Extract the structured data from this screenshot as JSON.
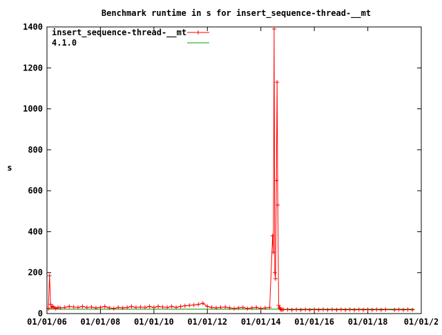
{
  "chart_data": {
    "type": "line",
    "title": "Benchmark runtime in s for insert_sequence-thread-__mt",
    "xlabel": "",
    "ylabel": "s",
    "xlim": [
      "2006-01-01",
      "2020-01-01"
    ],
    "ylim": [
      0,
      1400
    ],
    "x_ticks": [
      "01/01/06",
      "01/01/08",
      "01/01/10",
      "01/01/12",
      "01/01/14",
      "01/01/16",
      "01/01/18",
      "01/01/2"
    ],
    "y_ticks": [
      0,
      200,
      400,
      600,
      800,
      1000,
      1200,
      1400
    ],
    "grid": false,
    "legend_placement": "top-left",
    "colors": {
      "series": "#ff0000",
      "baseline": "#00a000"
    },
    "series": [
      {
        "name": "insert_sequence-thread-__mt",
        "style": "lines+crosses",
        "x": [
          "2006-01-20",
          "2006-02-05",
          "2006-02-20",
          "2006-03-05",
          "2006-03-20",
          "2006-04-05",
          "2006-05-01",
          "2006-06-01",
          "2006-07-01",
          "2006-09-01",
          "2006-11-01",
          "2007-01-01",
          "2007-03-01",
          "2007-05-01",
          "2007-07-01",
          "2007-09-01",
          "2007-11-01",
          "2008-01-01",
          "2008-03-01",
          "2008-05-01",
          "2008-07-01",
          "2008-09-01",
          "2008-11-01",
          "2009-01-01",
          "2009-03-01",
          "2009-05-01",
          "2009-07-01",
          "2009-09-01",
          "2009-11-01",
          "2010-01-01",
          "2010-03-01",
          "2010-05-01",
          "2010-07-01",
          "2010-09-01",
          "2010-11-01",
          "2011-01-01",
          "2011-03-01",
          "2011-05-01",
          "2011-07-01",
          "2011-09-01",
          "2011-11-01",
          "2012-01-01",
          "2012-03-01",
          "2012-05-01",
          "2012-07-01",
          "2012-09-01",
          "2012-11-01",
          "2013-01-01",
          "2013-03-01",
          "2013-05-01",
          "2013-07-01",
          "2013-09-01",
          "2013-11-01",
          "2014-01-01",
          "2014-03-01",
          "2014-05-01",
          "2014-06-10",
          "2014-06-20",
          "2014-07-01",
          "2014-07-10",
          "2014-07-20",
          "2014-08-01",
          "2014-08-10",
          "2014-08-20",
          "2014-09-01",
          "2014-09-10",
          "2014-09-20",
          "2014-10-01",
          "2014-10-15",
          "2014-11-01",
          "2015-01-01",
          "2015-03-01",
          "2015-05-01",
          "2015-07-01",
          "2015-09-01",
          "2015-11-01",
          "2016-01-01",
          "2016-03-01",
          "2016-05-01",
          "2016-07-01",
          "2016-09-01",
          "2016-11-01",
          "2017-01-01",
          "2017-03-01",
          "2017-05-01",
          "2017-07-01",
          "2017-09-01",
          "2017-11-01",
          "2018-01-01",
          "2018-03-01",
          "2018-05-01",
          "2018-07-01",
          "2018-09-01",
          "2019-01-01",
          "2019-03-01",
          "2019-05-01",
          "2019-07-01",
          "2019-09-01"
        ],
        "values": [
          25,
          185,
          45,
          30,
          35,
          30,
          25,
          30,
          28,
          30,
          35,
          32,
          30,
          35,
          30,
          32,
          28,
          30,
          35,
          28,
          25,
          30,
          28,
          30,
          35,
          30,
          32,
          30,
          35,
          30,
          35,
          32,
          30,
          35,
          30,
          35,
          38,
          40,
          42,
          45,
          50,
          35,
          30,
          28,
          30,
          32,
          28,
          25,
          28,
          30,
          25,
          28,
          30,
          25,
          28,
          30,
          380,
          300,
          1390,
          200,
          170,
          650,
          1130,
          530,
          40,
          30,
          25,
          20,
          18,
          20,
          20,
          18,
          20,
          18,
          20,
          18,
          20,
          18,
          20,
          18,
          20,
          18,
          20,
          18,
          20,
          18,
          20,
          18,
          20,
          18,
          20,
          18,
          20,
          18,
          20,
          18,
          20,
          18
        ]
      },
      {
        "name": "4.1.0",
        "style": "line",
        "x": [
          "2006-01-01",
          "2019-10-01"
        ],
        "values": [
          22,
          22
        ]
      }
    ]
  }
}
